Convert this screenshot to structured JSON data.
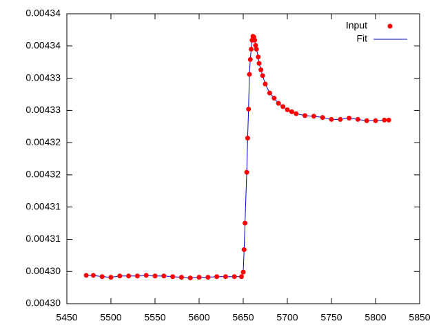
{
  "chart_data": {
    "type": "scatter-line",
    "x": [
      5472,
      5480,
      5490,
      5500,
      5510,
      5520,
      5530,
      5540,
      5550,
      5560,
      5570,
      5580,
      5590,
      5600,
      5610,
      5620,
      5630,
      5640,
      5648,
      5650,
      5651,
      5652,
      5654,
      5655,
      5656,
      5657,
      5658,
      5659,
      5660,
      5661,
      5662,
      5663,
      5664,
      5665,
      5667,
      5668,
      5670,
      5672,
      5675,
      5680,
      5685,
      5690,
      5695,
      5700,
      5705,
      5710,
      5720,
      5730,
      5740,
      5750,
      5760,
      5770,
      5780,
      5790,
      5800,
      5810,
      5815
    ],
    "series": [
      {
        "name": "Input",
        "color": "#ff0000",
        "style": "points",
        "values": [
          0.0043044,
          0.0043044,
          0.0043042,
          0.0043041,
          0.0043043,
          0.0043043,
          0.0043043,
          0.0043044,
          0.0043043,
          0.0043043,
          0.0043042,
          0.0043041,
          0.004304,
          0.0043041,
          0.0043041,
          0.0043042,
          0.0043042,
          0.0043042,
          0.0043042,
          0.0043049,
          0.0043084,
          0.0043125,
          0.0043204,
          0.0043257,
          0.0043302,
          0.0043356,
          0.0043379,
          0.0043395,
          0.0043409,
          0.0043415,
          0.0043414,
          0.0043409,
          0.0043401,
          0.0043395,
          0.0043383,
          0.0043373,
          0.0043363,
          0.0043354,
          0.0043341,
          0.0043327,
          0.0043319,
          0.0043311,
          0.0043306,
          0.0043301,
          0.0043298,
          0.0043295,
          0.0043292,
          0.0043291,
          0.0043289,
          0.0043286,
          0.0043286,
          0.0043288,
          0.0043286,
          0.0043284,
          0.0043284,
          0.0043285,
          0.0043285
        ]
      },
      {
        "name": "Fit",
        "color": "#0000cc",
        "style": "line",
        "values": [
          0.0043044,
          0.0043044,
          0.0043042,
          0.0043041,
          0.0043043,
          0.0043043,
          0.0043043,
          0.0043044,
          0.0043043,
          0.0043043,
          0.0043042,
          0.0043041,
          0.004304,
          0.0043041,
          0.0043041,
          0.0043042,
          0.0043042,
          0.0043042,
          0.0043042,
          0.0043049,
          0.0043084,
          0.0043125,
          0.0043204,
          0.0043257,
          0.0043302,
          0.0043356,
          0.0043379,
          0.0043395,
          0.0043409,
          0.0043415,
          0.0043414,
          0.0043409,
          0.0043401,
          0.0043395,
          0.0043383,
          0.0043373,
          0.0043363,
          0.0043354,
          0.0043341,
          0.0043327,
          0.0043319,
          0.0043311,
          0.0043306,
          0.0043301,
          0.0043298,
          0.0043295,
          0.0043292,
          0.0043291,
          0.0043289,
          0.0043286,
          0.0043286,
          0.0043288,
          0.0043286,
          0.0043284,
          0.0043284,
          0.0043285,
          0.0043285
        ]
      }
    ],
    "xlim": [
      5450,
      5850
    ],
    "xticks": [
      5450,
      5500,
      5550,
      5600,
      5650,
      5700,
      5750,
      5800,
      5850
    ],
    "ylim": [
      0.0043,
      0.004345
    ],
    "yticks": [
      {
        "value": 0.0043,
        "label": "0.00430"
      },
      {
        "value": 0.004305,
        "label": "0.00430"
      },
      {
        "value": 0.00431,
        "label": "0.00431"
      },
      {
        "value": 0.004315,
        "label": "0.00431"
      },
      {
        "value": 0.00432,
        "label": "0.00432"
      },
      {
        "value": 0.004325,
        "label": "0.00432"
      },
      {
        "value": 0.00433,
        "label": "0.00433"
      },
      {
        "value": 0.004335,
        "label": "0.00433"
      },
      {
        "value": 0.00434,
        "label": "0.00434"
      },
      {
        "value": 0.004345,
        "label": "0.00434"
      }
    ],
    "legend": "top-right"
  }
}
